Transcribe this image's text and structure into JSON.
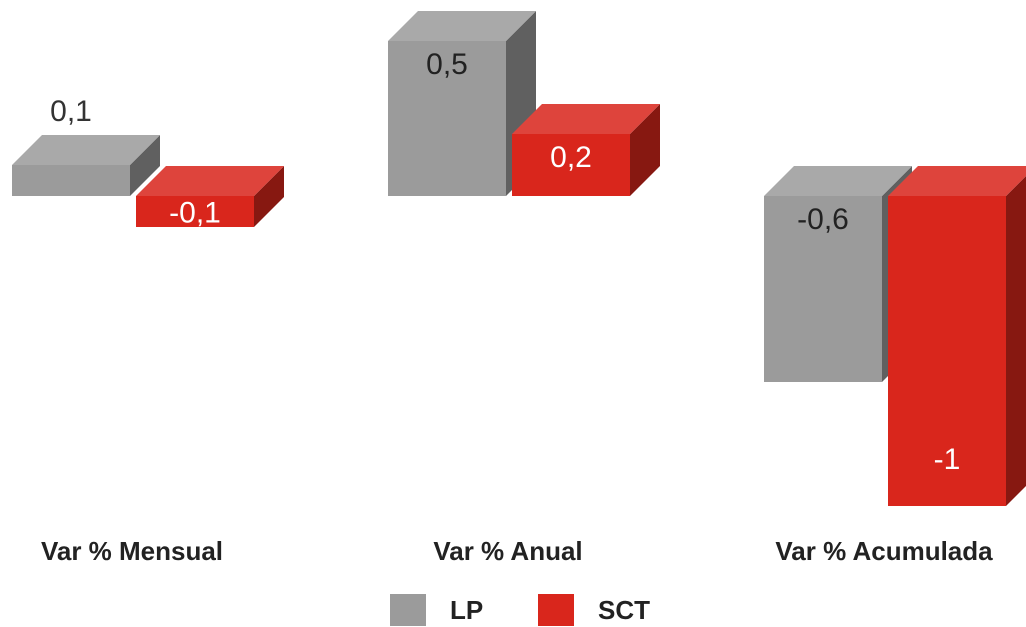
{
  "chart_data": {
    "type": "bar",
    "style": "3d-column",
    "categories": [
      "Var % Mensual",
      "Var % Anual",
      "Var % Acumulada"
    ],
    "series": [
      {
        "name": "LP",
        "values": [
          0.1,
          0.5,
          -0.6
        ],
        "labels": [
          "0,1",
          "0,5",
          "-0,6"
        ],
        "color": "#9b9b9b"
      },
      {
        "name": "SCT",
        "values": [
          -0.1,
          0.2,
          -1
        ],
        "labels": [
          "-0,1",
          "0,2",
          "-1"
        ],
        "color": "#d9261c"
      }
    ],
    "legend": "bottom-center",
    "grid": false,
    "y_axis_visible": false
  }
}
